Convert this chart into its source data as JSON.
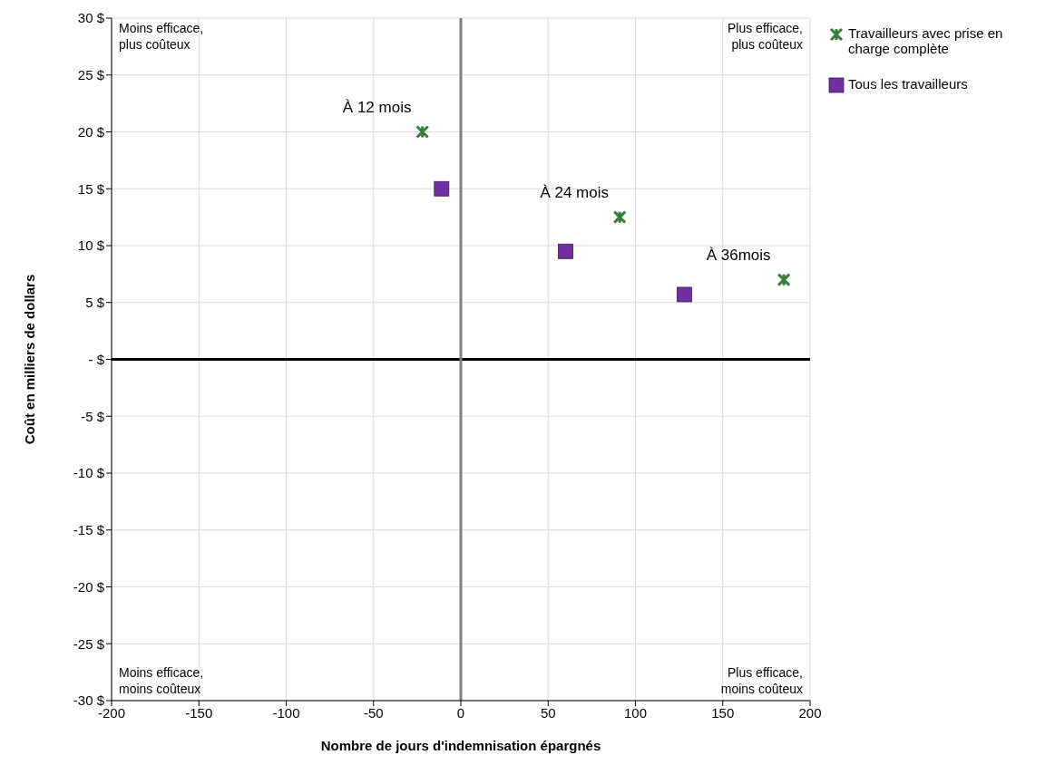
{
  "chart_data": {
    "type": "scatter",
    "xlabel": "Nombre de jours d'indemnisation  épargnés",
    "ylabel": "Coût en milliers de dollars",
    "series": [
      {
        "name": "Travailleurs avec prise en charge complète",
        "color": "#3a7d3a",
        "marker": "cross",
        "x": [
          -22,
          91,
          185
        ],
        "values": [
          20,
          12.5,
          7
        ]
      },
      {
        "name": "Tous les travailleurs",
        "color": "#7030a0",
        "marker": "square",
        "x": [
          -11,
          60,
          128
        ],
        "values": [
          15,
          9.5,
          5.7
        ]
      }
    ],
    "xlim": [
      -200,
      200
    ],
    "xticks": [
      -200,
      -150,
      -100,
      -50,
      0,
      50,
      100,
      150,
      200
    ],
    "ylim": [
      -30,
      30
    ],
    "yticks": [
      {
        "value": -30,
        "label": "-30 $"
      },
      {
        "value": -25,
        "label": "-25 $"
      },
      {
        "value": -20,
        "label": "-20 $"
      },
      {
        "value": -15,
        "label": "-15 $"
      },
      {
        "value": -10,
        "label": "-10 $"
      },
      {
        "value": -5,
        "label": "-5 $"
      },
      {
        "value": 0,
        "label": "- $"
      },
      {
        "value": 5,
        "label": "5 $"
      },
      {
        "value": 10,
        "label": "10 $"
      },
      {
        "value": 15,
        "label": "15 $"
      },
      {
        "value": 20,
        "label": "20 $"
      },
      {
        "value": 25,
        "label": "25 $"
      },
      {
        "value": 30,
        "label": "30 $"
      }
    ],
    "ref_lines": [
      {
        "axis": "y",
        "value": 0,
        "color": "#000000"
      },
      {
        "axis": "x",
        "value": 0,
        "color": "#808080"
      }
    ],
    "annotations": [
      "Moins efficace,\nplus coûteux",
      "Plus efficace,\nplus coûteux",
      "Moins efficace,\nmoins coûteux",
      "Plus efficace,\nmoins coûteux",
      {
        "text": "À 12 mois",
        "x": -22,
        "y": 20
      },
      {
        "text": "À 24 mois",
        "x": 91,
        "y": 12.5
      },
      {
        "text": "À 36mois",
        "x": 185,
        "y": 7
      }
    ],
    "grid": true,
    "legend": "right"
  }
}
